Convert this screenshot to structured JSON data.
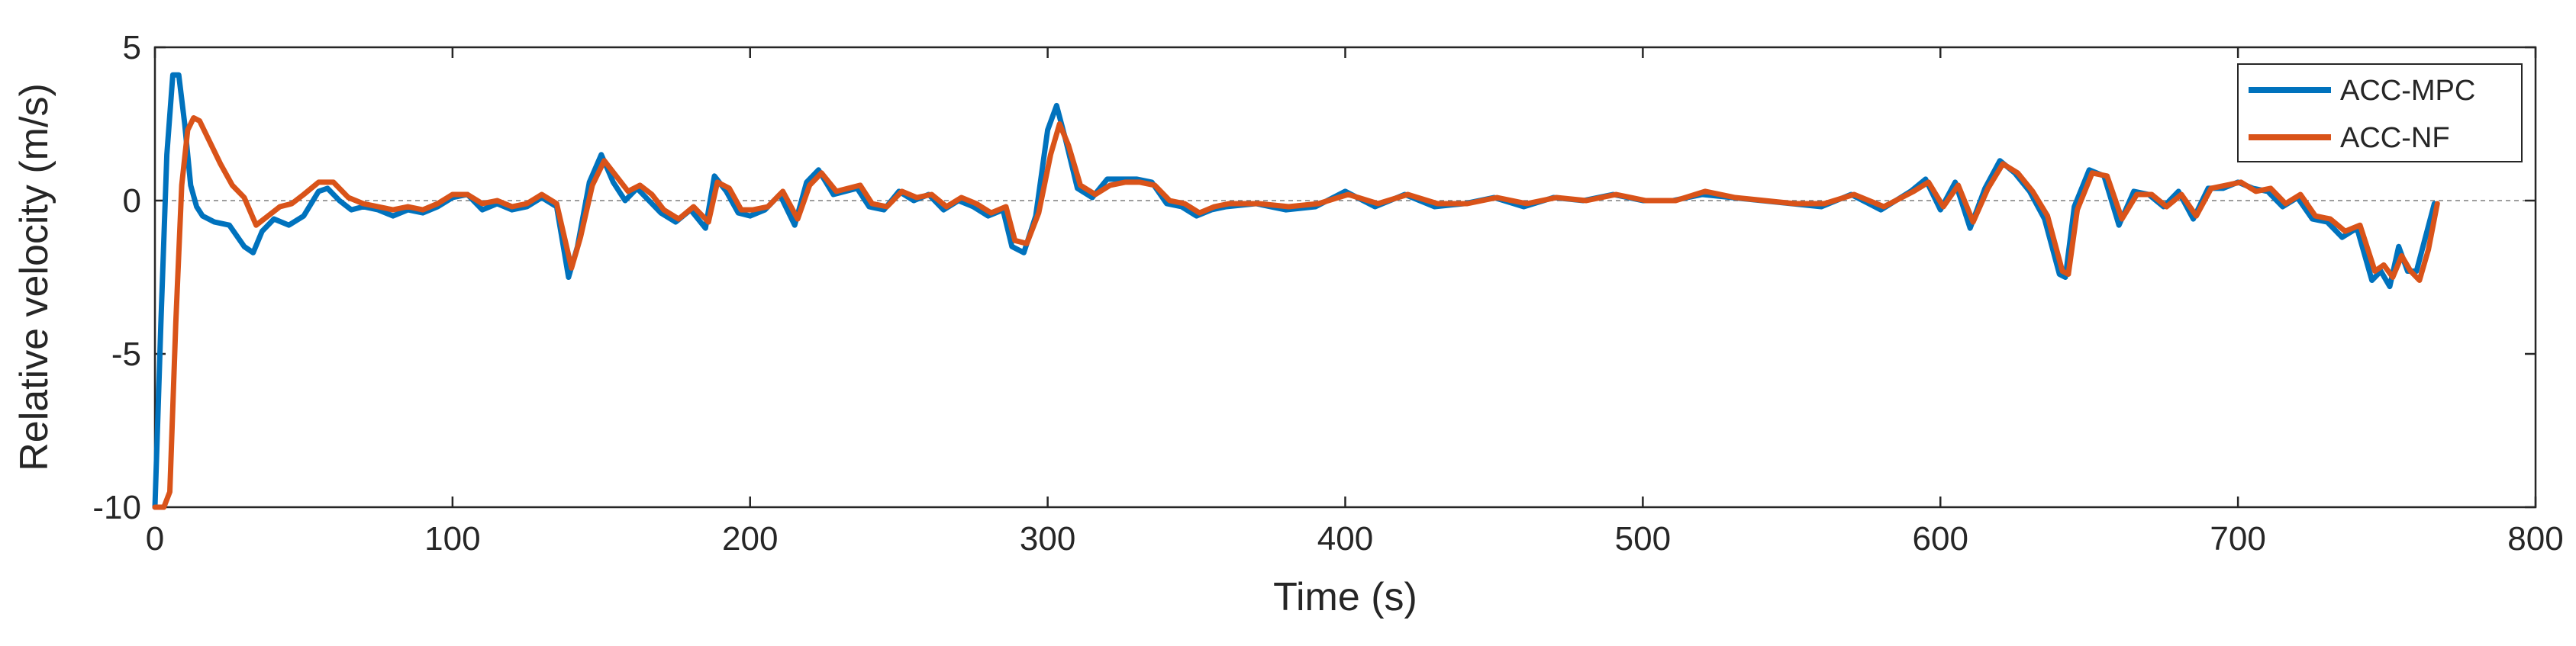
{
  "chart_data": {
    "type": "line",
    "title": "",
    "xlabel": "Time (s)",
    "ylabel": "Relative velocity (m/s)",
    "xlim": [
      0,
      800
    ],
    "ylim": [
      -10,
      5
    ],
    "xticks": [
      0,
      100,
      200,
      300,
      400,
      500,
      600,
      700,
      800
    ],
    "yticks": [
      -10,
      -5,
      0,
      5
    ],
    "grid": false,
    "zero_line": true,
    "legend_position": "top-right",
    "series": [
      {
        "name": "ACC-MPC",
        "color": "#0072BD",
        "x": [
          0,
          2,
          4,
          6,
          8,
          10,
          12,
          14,
          16,
          20,
          25,
          30,
          33,
          36,
          40,
          45,
          50,
          55,
          58,
          62,
          66,
          70,
          75,
          80,
          85,
          90,
          95,
          100,
          105,
          110,
          115,
          120,
          125,
          130,
          135,
          139,
          142,
          146,
          150,
          154,
          158,
          162,
          166,
          170,
          175,
          180,
          185,
          188,
          192,
          196,
          200,
          205,
          210,
          215,
          219,
          223,
          228,
          232,
          236,
          240,
          245,
          250,
          255,
          260,
          265,
          270,
          275,
          280,
          285,
          288,
          292,
          296,
          300,
          303,
          306,
          310,
          315,
          320,
          325,
          330,
          335,
          340,
          345,
          350,
          355,
          360,
          370,
          380,
          390,
          400,
          410,
          420,
          430,
          440,
          450,
          460,
          470,
          480,
          490,
          500,
          510,
          520,
          530,
          540,
          550,
          560,
          570,
          580,
          590,
          595,
          600,
          605,
          610,
          615,
          620,
          625,
          630,
          635,
          640,
          642,
          645,
          650,
          655,
          660,
          665,
          670,
          675,
          680,
          685,
          690,
          695,
          700,
          705,
          710,
          715,
          720,
          725,
          730,
          735,
          740,
          745,
          748,
          751,
          754,
          757,
          760,
          763,
          766
        ],
        "values": [
          -10,
          -4,
          1.5,
          4.1,
          4.1,
          2.5,
          0.5,
          -0.2,
          -0.5,
          -0.7,
          -0.8,
          -1.5,
          -1.7,
          -1.0,
          -0.6,
          -0.8,
          -0.5,
          0.3,
          0.4,
          0.0,
          -0.3,
          -0.2,
          -0.3,
          -0.5,
          -0.3,
          -0.4,
          -0.2,
          0.1,
          0.2,
          -0.3,
          -0.1,
          -0.3,
          -0.2,
          0.1,
          -0.2,
          -2.5,
          -1.5,
          0.6,
          1.5,
          0.6,
          0.0,
          0.4,
          0.0,
          -0.4,
          -0.7,
          -0.3,
          -0.9,
          0.8,
          0.3,
          -0.4,
          -0.5,
          -0.3,
          0.2,
          -0.8,
          0.6,
          1.0,
          0.2,
          0.3,
          0.4,
          -0.2,
          -0.3,
          0.3,
          0.0,
          0.2,
          -0.3,
          0.0,
          -0.2,
          -0.5,
          -0.3,
          -1.5,
          -1.7,
          -0.5,
          2.3,
          3.1,
          2.0,
          0.4,
          0.1,
          0.7,
          0.7,
          0.7,
          0.6,
          -0.1,
          -0.2,
          -0.5,
          -0.3,
          -0.2,
          -0.1,
          -0.3,
          -0.2,
          0.3,
          -0.2,
          0.2,
          -0.2,
          -0.1,
          0.1,
          -0.2,
          0.1,
          0.0,
          0.2,
          0.0,
          0.0,
          0.2,
          0.1,
          0.0,
          -0.1,
          -0.2,
          0.2,
          -0.3,
          0.3,
          0.7,
          -0.3,
          0.6,
          -0.9,
          0.4,
          1.3,
          0.9,
          0.3,
          -0.6,
          -2.4,
          -2.5,
          -0.2,
          1.0,
          0.8,
          -0.8,
          0.3,
          0.2,
          -0.2,
          0.3,
          -0.6,
          0.4,
          0.4,
          0.6,
          0.4,
          0.3,
          -0.2,
          0.1,
          -0.6,
          -0.7,
          -1.2,
          -0.9,
          -2.6,
          -2.3,
          -2.8,
          -1.5,
          -2.3,
          -2.3,
          -1.2,
          -0.1
        ]
      },
      {
        "name": "ACC-NF",
        "color": "#D95319",
        "x": [
          0,
          3,
          5,
          7,
          9,
          11,
          13,
          15,
          18,
          22,
          26,
          30,
          34,
          38,
          42,
          46,
          50,
          55,
          60,
          65,
          70,
          75,
          80,
          85,
          90,
          95,
          100,
          105,
          110,
          115,
          120,
          125,
          130,
          135,
          140,
          143,
          147,
          151,
          155,
          159,
          163,
          167,
          171,
          176,
          181,
          186,
          189,
          193,
          197,
          201,
          206,
          211,
          216,
          220,
          224,
          229,
          233,
          237,
          241,
          246,
          251,
          256,
          261,
          266,
          271,
          276,
          281,
          286,
          289,
          293,
          297,
          301,
          304,
          307,
          311,
          316,
          321,
          326,
          331,
          336,
          341,
          346,
          351,
          356,
          361,
          371,
          381,
          391,
          401,
          411,
          421,
          431,
          441,
          451,
          461,
          471,
          481,
          491,
          501,
          511,
          521,
          531,
          541,
          551,
          561,
          571,
          581,
          591,
          596,
          601,
          606,
          611,
          616,
          621,
          626,
          631,
          636,
          641,
          643,
          646,
          651,
          656,
          661,
          666,
          671,
          676,
          681,
          686,
          691,
          696,
          701,
          706,
          711,
          716,
          721,
          726,
          731,
          736,
          741,
          746,
          749,
          752,
          755,
          758,
          761,
          764,
          767
        ],
        "values": [
          -10,
          -10,
          -9.5,
          -4,
          0.5,
          2.3,
          2.7,
          2.6,
          2.0,
          1.2,
          0.5,
          0.1,
          -0.8,
          -0.5,
          -0.2,
          -0.1,
          0.2,
          0.6,
          0.6,
          0.1,
          -0.1,
          -0.2,
          -0.3,
          -0.2,
          -0.3,
          -0.1,
          0.2,
          0.2,
          -0.1,
          0.0,
          -0.2,
          -0.1,
          0.2,
          -0.1,
          -2.2,
          -1.2,
          0.5,
          1.3,
          0.8,
          0.3,
          0.5,
          0.2,
          -0.3,
          -0.6,
          -0.2,
          -0.7,
          0.6,
          0.4,
          -0.3,
          -0.3,
          -0.2,
          0.3,
          -0.6,
          0.5,
          0.9,
          0.3,
          0.4,
          0.5,
          -0.1,
          -0.2,
          0.3,
          0.1,
          0.2,
          -0.2,
          0.1,
          -0.1,
          -0.4,
          -0.2,
          -1.3,
          -1.4,
          -0.4,
          1.5,
          2.5,
          1.8,
          0.5,
          0.2,
          0.5,
          0.6,
          0.6,
          0.5,
          0.0,
          -0.1,
          -0.4,
          -0.2,
          -0.1,
          -0.1,
          -0.2,
          -0.1,
          0.2,
          -0.1,
          0.2,
          -0.1,
          -0.1,
          0.1,
          -0.1,
          0.1,
          0.0,
          0.2,
          0.0,
          0.0,
          0.3,
          0.1,
          0.0,
          -0.1,
          -0.1,
          0.2,
          -0.2,
          0.3,
          0.6,
          -0.2,
          0.5,
          -0.7,
          0.4,
          1.2,
          0.9,
          0.3,
          -0.5,
          -2.3,
          -2.4,
          -0.3,
          0.9,
          0.8,
          -0.6,
          0.2,
          0.2,
          -0.2,
          0.2,
          -0.5,
          0.4,
          0.5,
          0.6,
          0.3,
          0.4,
          -0.1,
          0.2,
          -0.5,
          -0.6,
          -1.0,
          -0.8,
          -2.3,
          -2.1,
          -2.5,
          -1.8,
          -2.3,
          -2.6,
          -1.6,
          -0.1
        ]
      }
    ]
  }
}
